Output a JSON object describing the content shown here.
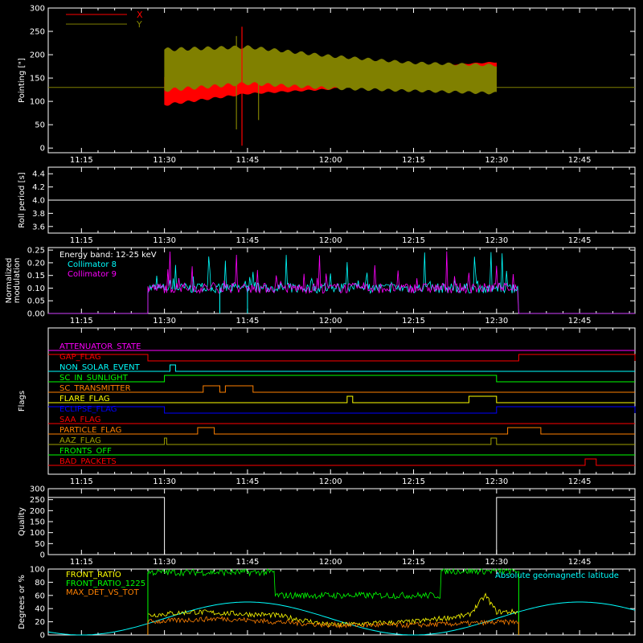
{
  "time_ticks": [
    "11:15",
    "11:30",
    "11:45",
    "12:00",
    "12:15",
    "12:30",
    "12:45"
  ],
  "colors": {
    "background": "#000000",
    "axes": "#ffffff",
    "red": "#ff0000",
    "olive": "#808000",
    "cyan": "#00ffff",
    "magenta": "#ff00ff",
    "green": "#00ff00",
    "yellow": "#ffff00",
    "orange": "#ff8000",
    "blue": "#0000ff",
    "white": "#ffffff",
    "brown": "#c06000",
    "dark_yellow": "#a0a000",
    "lime": "#33ff33"
  },
  "chart_data": [
    {
      "id": "pointing",
      "type": "area",
      "ylabel": "Pointing [\"]",
      "ylim": [
        -10,
        300
      ],
      "yticks": [
        "0",
        "50",
        "100",
        "150",
        "200",
        "250",
        "300"
      ],
      "xlim": [
        "11:09",
        "12:55"
      ],
      "grid": false,
      "legend_position": "top-left",
      "series": [
        {
          "name": "X",
          "color": "#ff0000",
          "x": [
            "11:30",
            "11:45",
            "12:00",
            "12:15",
            "12:30"
          ],
          "low": [
            90,
            115,
            125,
            150,
            160
          ],
          "high": [
            155,
            155,
            160,
            175,
            185
          ]
        },
        {
          "name": "Y",
          "color": "#808000",
          "x": [
            "11:30",
            "11:45",
            "12:00",
            "12:15",
            "12:30"
          ],
          "low": [
            120,
            135,
            125,
            120,
            115
          ],
          "high": [
            215,
            220,
            200,
            185,
            180
          ]
        }
      ],
      "reference_line": {
        "y": 130,
        "color": "#808000"
      },
      "spikes": [
        {
          "x": "11:43",
          "values": [
            40,
            240
          ]
        },
        {
          "x": "11:44",
          "values": [
            5,
            260
          ]
        },
        {
          "x": "11:47",
          "values": [
            60,
            210
          ]
        }
      ]
    },
    {
      "id": "roll",
      "type": "line",
      "ylabel": "Roll period [s]",
      "ylim": [
        3.5,
        4.5
      ],
      "yticks": [
        "3.6",
        "3.8",
        "4.0",
        "4.2",
        "4.4"
      ],
      "xlim": [
        "11:09",
        "12:55"
      ],
      "grid": false,
      "series": [
        {
          "color": "#ffffff",
          "x": [
            "11:09",
            "12:55"
          ],
          "y": [
            4.0,
            4.0
          ]
        }
      ]
    },
    {
      "id": "modulation",
      "type": "line",
      "ylabel": "Normalized modulation",
      "ylim": [
        0.0,
        0.26
      ],
      "yticks": [
        "0.00",
        "0.05",
        "0.10",
        "0.15",
        "0.20",
        "0.25"
      ],
      "xlim": [
        "11:09",
        "12:55"
      ],
      "annotation": "Energy band: 12-25 keV",
      "legend_position": "top-left",
      "series": [
        {
          "name": "Collimator 8",
          "color": "#00ffff",
          "start": "11:27",
          "end": "12:34",
          "baseline": 0.1,
          "spikes_at": [
            "11:32",
            "11:38",
            "11:41",
            "11:52",
            "12:03",
            "12:17",
            "12:26",
            "12:29",
            "12:31"
          ]
        },
        {
          "name": "Collimator 9",
          "color": "#ff00ff",
          "start": "11:27",
          "end": "12:34",
          "baseline": 0.1,
          "spikes_at": [
            "11:31",
            "11:35",
            "11:43",
            "11:58",
            "12:08",
            "12:21",
            "12:30"
          ]
        }
      ],
      "drops": [
        {
          "series": "Collimator 8",
          "x": "11:40"
        },
        {
          "series": "Collimator 8",
          "x": "11:45"
        }
      ]
    },
    {
      "id": "flags",
      "type": "line",
      "ylabel": "Flags",
      "xlim": [
        "11:09",
        "12:55"
      ],
      "flags": [
        {
          "name": "ATTENUATOR_STATE",
          "color": "#ff00ff",
          "changes": []
        },
        {
          "name": "GAP_FLAG",
          "color": "#ff0000",
          "high": [
            [
              "11:09",
              "11:27"
            ],
            [
              "12:34",
              "12:55"
            ]
          ]
        },
        {
          "name": "NON_SOLAR_EVENT",
          "color": "#00ffff",
          "high": [
            [
              "11:31",
              "11:32"
            ]
          ]
        },
        {
          "name": "SC_IN_SUNLIGHT",
          "color": "#00ff00",
          "high": [
            [
              "11:30",
              "12:30"
            ]
          ]
        },
        {
          "name": "SC_TRANSMITTER",
          "color": "#ff8000",
          "high": [
            [
              "11:37",
              "11:40"
            ],
            [
              "11:41",
              "11:46"
            ]
          ]
        },
        {
          "name": "FLARE_FLAG",
          "color": "#ffff00",
          "high": [
            [
              "12:03",
              "12:04"
            ],
            [
              "12:25",
              "12:30"
            ]
          ]
        },
        {
          "name": "ECLIPSE_FLAG",
          "color": "#0000ff",
          "high": [
            [
              "11:09",
              "11:30"
            ],
            [
              "12:30",
              "12:55"
            ]
          ]
        },
        {
          "name": "SAA_FLAG",
          "color": "#ff0000",
          "high": []
        },
        {
          "name": "PARTICLE_FLAG",
          "color": "#ff8000",
          "high": [
            [
              "11:36",
              "11:39"
            ],
            [
              "12:32",
              "12:38"
            ]
          ]
        },
        {
          "name": "AAZ_FLAG",
          "color": "#a0a000",
          "high": [
            [
              "11:30",
              "11:30"
            ],
            [
              "12:29",
              "12:30"
            ]
          ]
        },
        {
          "name": "FRONTS_OFF",
          "color": "#00ff00",
          "high": []
        },
        {
          "name": "BAD_PACKETS",
          "color": "#ff0000",
          "high": [
            [
              "12:46",
              "12:48"
            ]
          ]
        }
      ]
    },
    {
      "id": "quality",
      "type": "line",
      "ylabel": "Quality",
      "ylim": [
        0,
        300
      ],
      "yticks": [
        "0",
        "50",
        "100",
        "150",
        "200",
        "250",
        "300"
      ],
      "xlim": [
        "11:09",
        "12:55"
      ],
      "series": [
        {
          "color": "#ffffff",
          "x": [
            "11:09",
            "11:30",
            "11:30",
            "12:30",
            "12:30",
            "12:55"
          ],
          "y": [
            260,
            260,
            0,
            0,
            260,
            260
          ]
        }
      ]
    },
    {
      "id": "ratios",
      "type": "line",
      "ylabel": "Degrees or %",
      "ylim": [
        0,
        100
      ],
      "yticks": [
        "0",
        "20",
        "40",
        "60",
        "80",
        "100"
      ],
      "xlim": [
        "11:09",
        "12:55"
      ],
      "legend_position": "top-left",
      "series": [
        {
          "name": "FRONT_RATIO",
          "color": "#ffff00",
          "x": [
            "11:27",
            "11:35",
            "11:50",
            "12:00",
            "12:15",
            "12:25",
            "12:28",
            "12:30",
            "12:34"
          ],
          "y": [
            30,
            35,
            30,
            15,
            20,
            30,
            60,
            35,
            35
          ]
        },
        {
          "name": "FRONT_RATIO_1225",
          "color": "#00ff00",
          "x": [
            "11:27",
            "11:30",
            "11:50",
            "11:50",
            "12:20",
            "12:20",
            "12:34"
          ],
          "y": [
            95,
            95,
            95,
            60,
            60,
            97,
            97
          ]
        },
        {
          "name": "MAX_DET_VS_TOT",
          "color": "#ff8000",
          "x": [
            "11:27",
            "11:40",
            "12:00",
            "12:15",
            "12:34"
          ],
          "y": [
            20,
            25,
            15,
            15,
            20
          ]
        }
      ],
      "secondary_series": {
        "name": "Absolute geomagnetic latitude",
        "color": "#00ffff",
        "x": [
          "11:09",
          "11:15",
          "11:45",
          "12:15",
          "12:45",
          "12:55"
        ],
        "y": [
          20,
          0,
          50,
          0,
          50,
          30
        ]
      }
    }
  ]
}
